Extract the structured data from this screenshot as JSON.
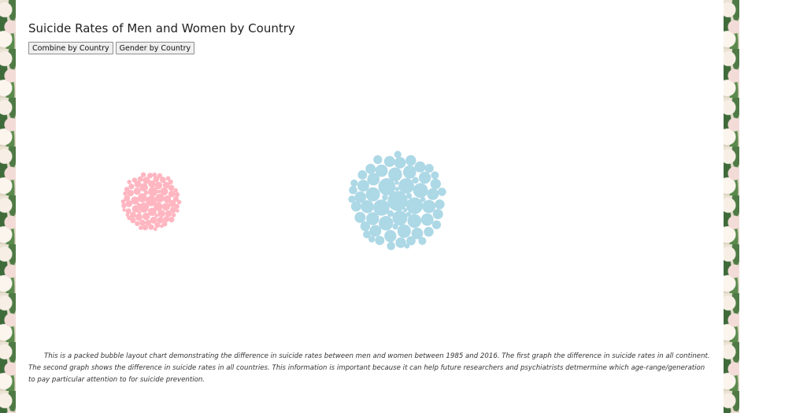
{
  "page": {
    "title": "Suicide Rates of Men and Women by Country",
    "buttons": {
      "combine": "Combine by Country",
      "gender": "Gender by Country"
    },
    "description": "This is a packed bubble layout chart demonstrating the difference in suicide rates between men and women between 1985 and 2016. The first graph the difference in suicide rates in all continent. The second graph shows the difference in suicide rates in all countries. This information is important because it can help future researchers and psychiatrists detmermine which age-range/generation to pay particular attention to for suicide prevention."
  },
  "colors": {
    "women": "#ffb6c1",
    "men": "#add8e6"
  },
  "chart_data": {
    "type": "packed-bubble",
    "title": "Suicide Rates of Men and Women by Country",
    "series": [
      {
        "color": "#ffb6c1",
        "values": [
          18,
          16,
          14,
          13,
          12,
          12,
          11,
          11,
          10,
          10,
          10,
          9,
          9,
          9,
          9,
          9,
          8,
          8,
          8,
          8,
          8,
          8,
          7,
          7,
          7,
          7,
          7,
          7,
          7,
          6,
          6,
          6,
          6,
          6,
          6,
          6,
          6,
          6,
          5,
          5,
          5,
          5,
          5,
          5,
          5,
          5,
          5,
          5,
          4,
          4,
          4,
          4,
          4,
          4,
          4,
          4,
          4,
          4,
          3,
          3,
          3,
          3,
          3,
          3,
          3,
          3,
          3,
          3,
          3,
          2,
          2,
          2,
          2,
          2,
          2,
          2,
          2,
          2
        ]
      },
      {
        "color": "#add8e6",
        "values": [
          46,
          34,
          32,
          30,
          28,
          26,
          25,
          24,
          23,
          22,
          22,
          21,
          20,
          20,
          19,
          19,
          18,
          18,
          18,
          17,
          17,
          16,
          16,
          16,
          15,
          15,
          15,
          14,
          14,
          14,
          13,
          13,
          13,
          12,
          12,
          12,
          11,
          11,
          11,
          10,
          10,
          10,
          9,
          9,
          9,
          8,
          8,
          8,
          7,
          7,
          7,
          6,
          6,
          6,
          5,
          5,
          5,
          4,
          4,
          4,
          3,
          3,
          3,
          2,
          2,
          2
        ]
      }
    ]
  }
}
